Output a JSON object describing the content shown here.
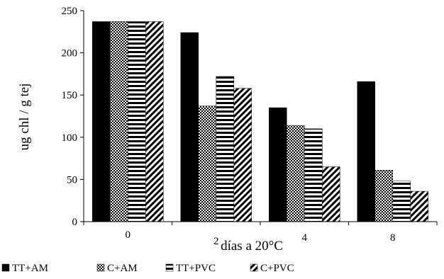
{
  "chart_data": {
    "type": "bar",
    "categories": [
      "0",
      "2",
      "4",
      "8"
    ],
    "series": [
      {
        "name": "TT+AM",
        "values": [
          237,
          224,
          135,
          166
        ],
        "pattern": "solid"
      },
      {
        "name": "C+AM",
        "values": [
          237,
          137,
          114,
          61
        ],
        "pattern": "checker"
      },
      {
        "name": "TT+PVC",
        "values": [
          237,
          172,
          110,
          48
        ],
        "pattern": "horizontal-stripes"
      },
      {
        "name": "C+PVC",
        "values": [
          237,
          158,
          65,
          36
        ],
        "pattern": "diagonal-stripes"
      }
    ],
    "xlabel": "días a 20°C",
    "ylabel": "ug chl / g tej",
    "ylim": [
      0,
      250
    ],
    "yticks": [
      0,
      50,
      100,
      150,
      200,
      250
    ],
    "grid": false,
    "legend_position": "bottom-left",
    "colors": {
      "bar": "#000000",
      "background": "#ffffff"
    }
  }
}
